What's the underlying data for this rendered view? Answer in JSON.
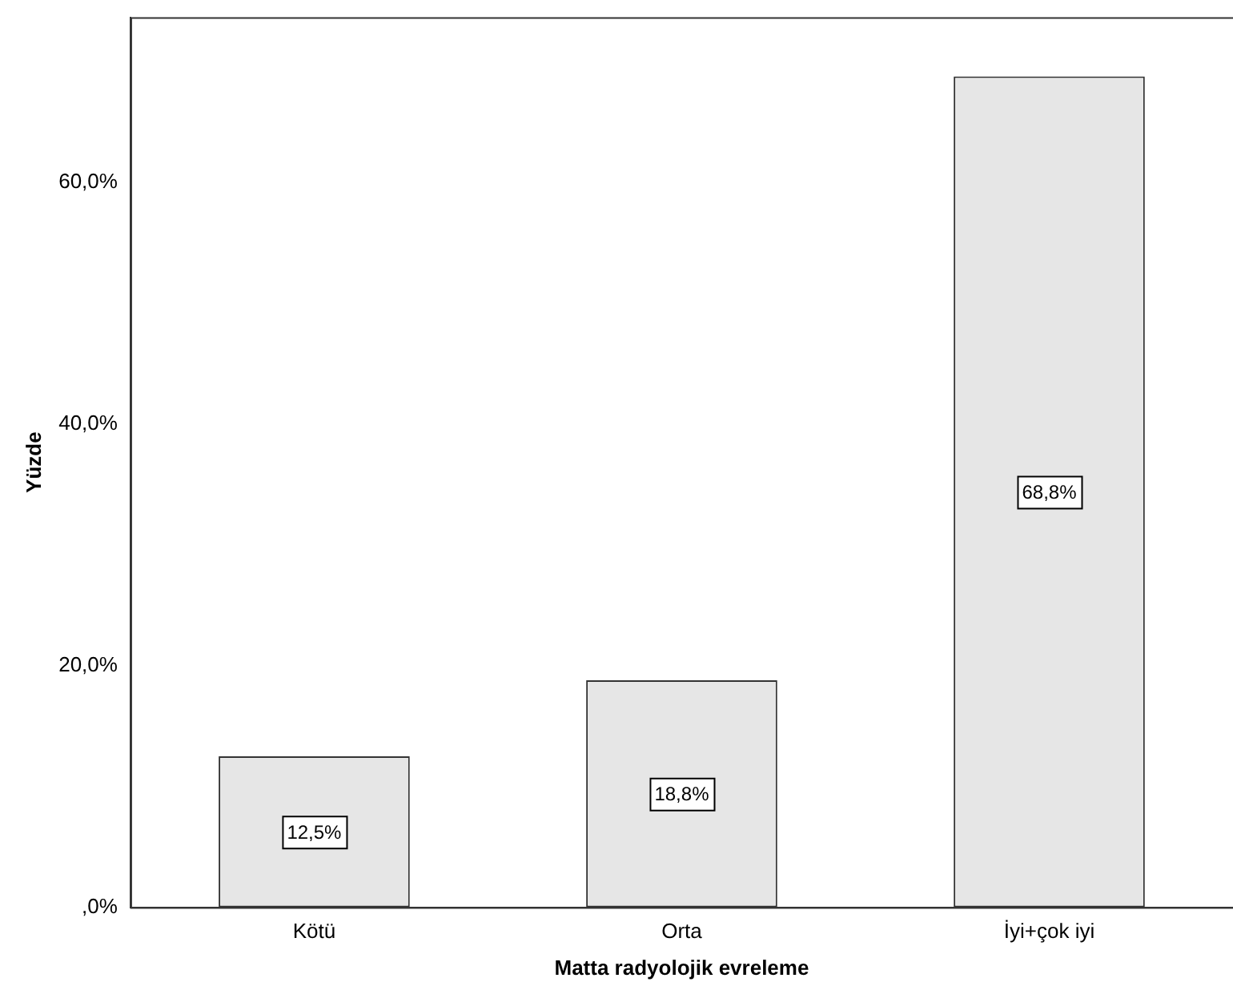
{
  "chart_data": {
    "type": "bar",
    "xlabel": "Matta radyolojik evreleme",
    "ylabel": "Yüzde",
    "categories": [
      "Kötü",
      "Orta",
      "İyi+çok iyi"
    ],
    "values": [
      12.5,
      18.8,
      68.8
    ],
    "value_labels": [
      "12,5%",
      "18,8%",
      "68,8%"
    ],
    "color": "#e6e6e6",
    "ylim": [
      0,
      73.7
    ],
    "yticks": [
      {
        "value": 0,
        "label": ",0%"
      },
      {
        "value": 20,
        "label": "20,0%"
      },
      {
        "value": 40,
        "label": "40,0%"
      },
      {
        "value": 60,
        "label": "60,0%"
      }
    ],
    "grid": false,
    "legend": false
  }
}
